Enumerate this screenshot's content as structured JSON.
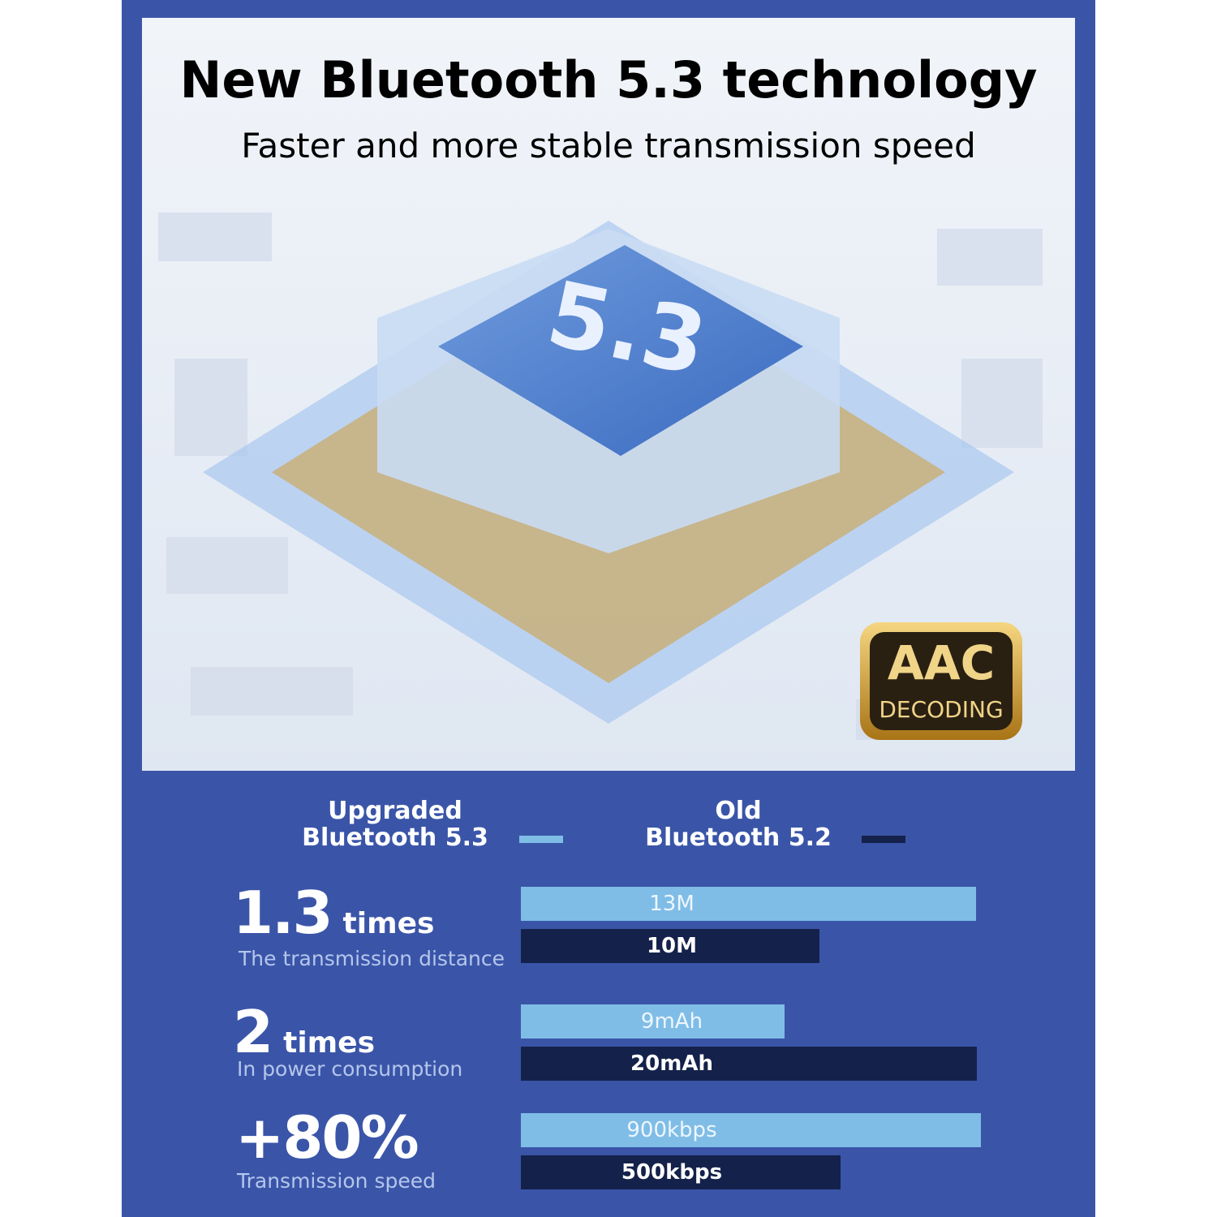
{
  "header": {
    "title": "New Bluetooth 5.3 technology",
    "subtitle": "Faster and more stable transmission speed"
  },
  "image": {
    "chip_label": "5.3",
    "badge": {
      "top": "AAC",
      "bottom": "DECODING"
    }
  },
  "legend": [
    {
      "lines": [
        "Upgraded",
        "Bluetooth 5.3"
      ],
      "color": "#7fbde6"
    },
    {
      "lines": [
        "Old",
        "Bluetooth 5.2"
      ],
      "color": "#14214a"
    }
  ],
  "rows": [
    {
      "stat": "1.3",
      "unit": "times",
      "caption": "The transmission distance",
      "new": "13M",
      "old": "10M"
    },
    {
      "stat": "2",
      "unit": "times",
      "caption": "In power consumption",
      "new": "9mAh",
      "old": "20mAh"
    },
    {
      "stat": "+80%",
      "caption": "Transmission speed",
      "new": "900kbps",
      "old": "500kbps"
    }
  ]
}
